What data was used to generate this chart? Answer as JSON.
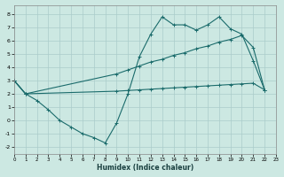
{
  "bg_color": "#cce8e2",
  "grid_color": "#aaccca",
  "line_color": "#1a6b6b",
  "xlim": [
    0,
    23
  ],
  "ylim": [
    -2.5,
    8.7
  ],
  "xticks": [
    0,
    1,
    2,
    3,
    4,
    5,
    6,
    7,
    8,
    9,
    10,
    11,
    12,
    13,
    14,
    15,
    16,
    17,
    18,
    19,
    20,
    21,
    22,
    23
  ],
  "yticks": [
    -2,
    -1,
    0,
    1,
    2,
    3,
    4,
    5,
    6,
    7,
    8
  ],
  "xlabel": "Humidex (Indice chaleur)",
  "line1_x": [
    0,
    1,
    2,
    3,
    4,
    5,
    6,
    7,
    8,
    9,
    10,
    11,
    12,
    13,
    14,
    15,
    16,
    17,
    18,
    19,
    20,
    21,
    22
  ],
  "line1_y": [
    3.0,
    2.0,
    1.5,
    0.8,
    0.0,
    -0.5,
    -1.0,
    -1.3,
    -1.7,
    -0.2,
    2.0,
    4.8,
    6.5,
    7.8,
    7.2,
    7.2,
    6.8,
    7.2,
    7.8,
    6.9,
    6.5,
    4.5,
    2.3
  ],
  "line2_x": [
    0,
    1,
    9,
    10,
    11,
    12,
    13,
    14,
    15,
    16,
    17,
    18,
    19,
    20,
    21,
    22
  ],
  "line2_y": [
    3.0,
    2.0,
    2.2,
    2.25,
    2.3,
    2.35,
    2.4,
    2.45,
    2.5,
    2.55,
    2.6,
    2.65,
    2.7,
    2.75,
    2.8,
    2.3
  ],
  "line3_x": [
    0,
    1,
    9,
    10,
    11,
    12,
    13,
    14,
    15,
    16,
    17,
    18,
    19,
    20,
    21,
    22
  ],
  "line3_y": [
    3.0,
    2.0,
    3.5,
    3.8,
    4.1,
    4.4,
    4.6,
    4.9,
    5.1,
    5.4,
    5.6,
    5.9,
    6.1,
    6.4,
    5.5,
    2.3
  ]
}
